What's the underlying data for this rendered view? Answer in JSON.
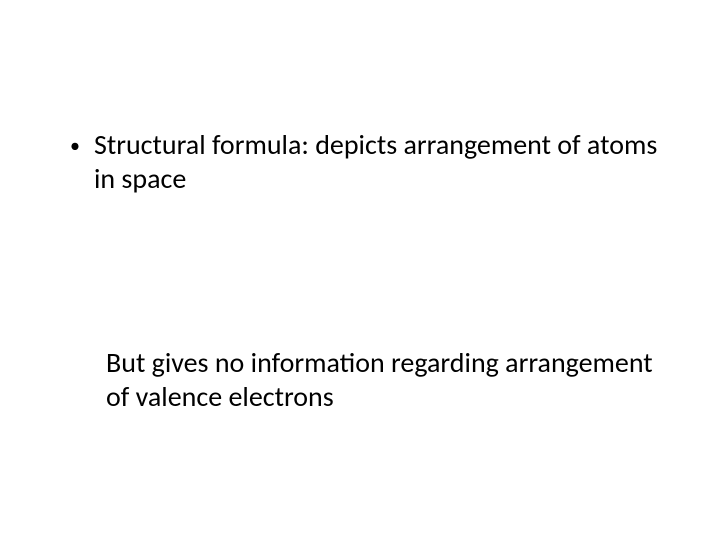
{
  "slide": {
    "bullet_marker": "•",
    "bullet_text": "Structural formula: depicts arrangement of atoms in space",
    "secondary_text": "But gives no information regarding arrangement of valence electrons",
    "background_color": "#ffffff",
    "text_color": "#000000",
    "font_family": "Calibri",
    "font_size_pt": 28,
    "font_weight": 400,
    "line_height": 34
  }
}
